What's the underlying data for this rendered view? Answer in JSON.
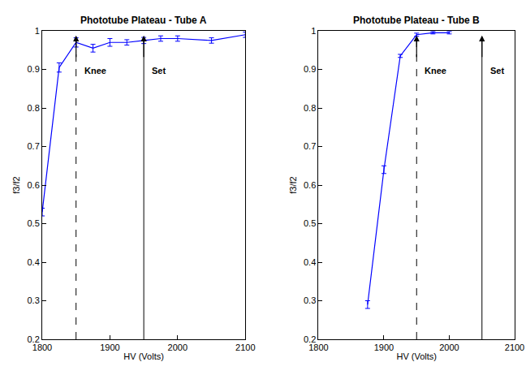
{
  "chart_data": [
    {
      "type": "line",
      "title": "Phototube Plateau - Tube A",
      "x_label": "HV (Volts)",
      "y_label": "f3/f2",
      "x": [
        1800,
        1825,
        1850,
        1875,
        1900,
        1925,
        1950,
        1975,
        2000,
        2050,
        2100
      ],
      "values": [
        0.53,
        0.905,
        0.97,
        0.955,
        0.97,
        0.97,
        0.975,
        0.98,
        0.98,
        0.975,
        0.99
      ],
      "errors": [
        0.01,
        0.012,
        0.012,
        0.01,
        0.01,
        0.007,
        0.008,
        0.007,
        0.007,
        0.007,
        0.007
      ],
      "color": "#0000ff",
      "xlim": [
        1800,
        2100
      ],
      "xticks": [
        1800,
        1900,
        2000,
        2100
      ],
      "ylim": [
        0.2,
        1
      ],
      "yticks": [
        0.2,
        0.3,
        0.4,
        0.5,
        0.6,
        0.7,
        0.8,
        0.9,
        1
      ],
      "annotations": [
        {
          "text": "Knee",
          "x": 1850,
          "line_style": "dashed"
        },
        {
          "text": "Set",
          "x": 1950,
          "line_style": "solid"
        }
      ]
    },
    {
      "type": "line",
      "title": "Phototube Plateau - Tube B",
      "x_label": "HV (Volts)",
      "y_label": "f3/f2",
      "x": [
        1875,
        1900,
        1925,
        1950,
        1975,
        2000
      ],
      "values": [
        0.29,
        0.64,
        0.935,
        0.99,
        0.995,
        0.995
      ],
      "errors": [
        0.01,
        0.01,
        0.004,
        0.004,
        0.003,
        0.003
      ],
      "color": "#0000ff",
      "xlim": [
        1800,
        2100
      ],
      "xticks": [
        1800,
        1900,
        2000,
        2100
      ],
      "ylim": [
        0.2,
        1
      ],
      "yticks": [
        0.2,
        0.3,
        0.4,
        0.5,
        0.6,
        0.7,
        0.8,
        0.9,
        1
      ],
      "annotations": [
        {
          "text": "Knee",
          "x": 1950,
          "line_style": "dashed"
        },
        {
          "text": "Set",
          "x": 2050,
          "line_style": "solid"
        }
      ]
    }
  ]
}
